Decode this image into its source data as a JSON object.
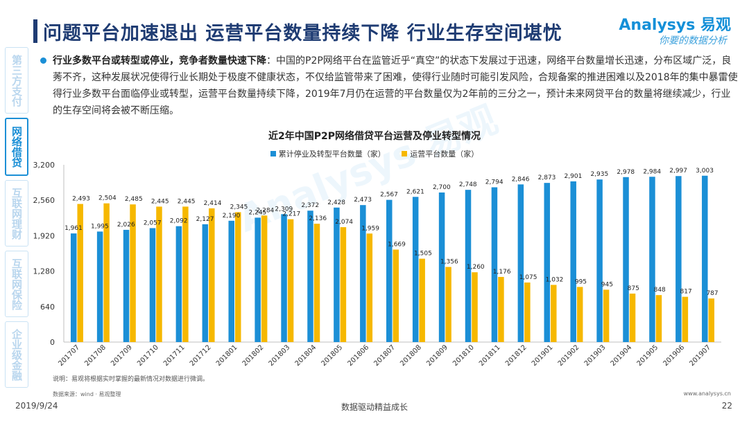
{
  "header": {
    "title": "问题平台加速退出 运营平台数量持续下降  行业生存空间堪忧",
    "logo_main": "Analysys 易观",
    "logo_sub": "你要的数据分析"
  },
  "side_nav": [
    {
      "label": "第三方支付",
      "active": false
    },
    {
      "label": "网络借贷",
      "active": true
    },
    {
      "label": "互联网理财",
      "active": false
    },
    {
      "label": "互联网保险",
      "active": false
    },
    {
      "label": "企业级金融",
      "active": false
    }
  ],
  "content": {
    "bold_lead": "行业多数平台或转型或停业，竞争者数量快速下降",
    "paragraph": "：中国的P2P网络平台在监管近乎“真空”的状态下发展过于迅速，网络平台数量增长迅速，分布区域广泛，良莠不齐，这种发展状况使得行业长期处于极度不健康状态，不仅给监管带来了困难，使得行业随时可能引发风险，合规备案的推进困难以及2018年的集中暴雷使得行业多数平台面临停业或转型，运营平台数量持续下降，2019年7月仍在运营的平台数量仅为2年前的三分之一，预计未来网贷平台的数量将继续减少，行业的生存空间将会被不断压缩。"
  },
  "watermark": "Analysys 易观",
  "chart_data": {
    "type": "bar",
    "title": "近2年中国P2P网络借贷平台运营及停业转型情况",
    "categories": [
      "201707",
      "201708",
      "201709",
      "201710",
      "201711",
      "201712",
      "201801",
      "201802",
      "201803",
      "201804",
      "201805",
      "201806",
      "201807",
      "201808",
      "201809",
      "201810",
      "201811",
      "201812",
      "201901",
      "201902",
      "201903",
      "201904",
      "201905",
      "201906",
      "201907"
    ],
    "series": [
      {
        "name": "累计停业及转型平台数量（家）",
        "color": "#1b8fd6",
        "values": [
          1961,
          1995,
          2026,
          2057,
          2092,
          2127,
          2190,
          2245,
          2309,
          2372,
          2428,
          2473,
          2567,
          2621,
          2700,
          2748,
          2794,
          2846,
          2873,
          2901,
          2935,
          2978,
          2984,
          2997,
          3003
        ]
      },
      {
        "name": "运营平台数量（家）",
        "color": "#f6b800",
        "values": [
          2493,
          2504,
          2485,
          2445,
          2445,
          2414,
          2345,
          2284,
          2217,
          2136,
          2074,
          1959,
          1669,
          1505,
          1356,
          1260,
          1176,
          1075,
          1032,
          995,
          945,
          875,
          848,
          817,
          787
        ]
      }
    ],
    "yticks": [
      "0",
      "640",
      "1,280",
      "1,920",
      "2,560",
      "3,200"
    ],
    "ylim": [
      0,
      3200
    ],
    "grid": false,
    "legend_position": "top"
  },
  "footer": {
    "note": "说明：易观将根据实时掌握的最新情况对数据进行微调。",
    "source": "数据来源：wind · 易观整理",
    "website": "www.analysys.cn",
    "date": "2019/9/24",
    "slogan": "数据驱动精益成长",
    "page_number": "22"
  }
}
